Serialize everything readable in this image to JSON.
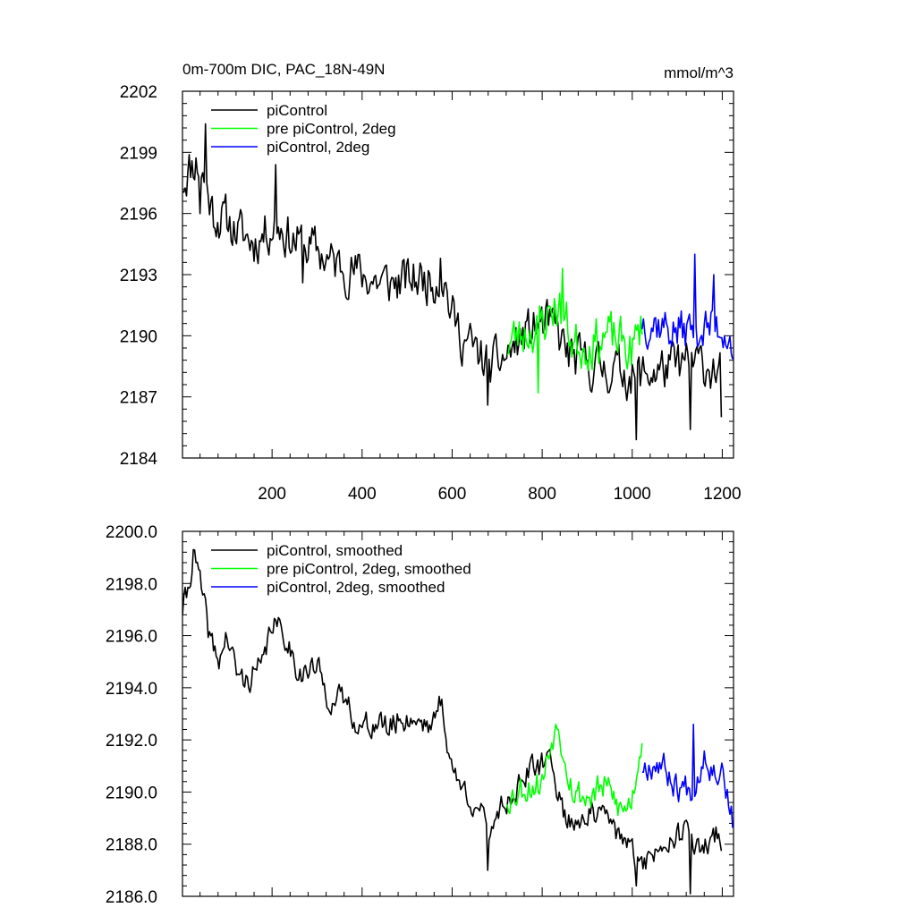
{
  "figure": {
    "title_left": "0m-700m DIC, PAC_18N-49N",
    "title_right": "mmol/m^3"
  },
  "chart_data": [
    {
      "type": "line",
      "name": "raw",
      "xlim": [
        1,
        1225
      ],
      "ylim": [
        2184,
        2202
      ],
      "xticks": [
        200,
        400,
        600,
        800,
        1000,
        1200
      ],
      "xtick_labels": [
        "200",
        "400",
        "600",
        "800",
        "1000",
        "1200"
      ],
      "yticks": [
        2184,
        2187,
        2190,
        2193,
        2196,
        2199,
        2202
      ],
      "ytick_labels": [
        "2184",
        "2187",
        "2190",
        "2193",
        "2196",
        "2199",
        "2202"
      ],
      "legend_position": "top-left",
      "series": [
        {
          "name": "piControl",
          "color": "#000000",
          "x_range": [
            1,
            1200
          ],
          "anchors": [
            [
              1,
              2197.6
            ],
            [
              15,
              2198.2
            ],
            [
              30,
              2198.6
            ],
            [
              50,
              2197.6
            ],
            [
              70,
              2196.0
            ],
            [
              100,
              2195.6
            ],
            [
              130,
              2195.0
            ],
            [
              160,
              2194.6
            ],
            [
              190,
              2195.2
            ],
            [
              210,
              2195.6
            ],
            [
              240,
              2194.8
            ],
            [
              270,
              2194.4
            ],
            [
              300,
              2194.2
            ],
            [
              330,
              2193.6
            ],
            [
              360,
              2193.4
            ],
            [
              400,
              2193.0
            ],
            [
              440,
              2192.6
            ],
            [
              480,
              2192.6
            ],
            [
              520,
              2192.8
            ],
            [
              560,
              2192.8
            ],
            [
              580,
              2193.0
            ],
            [
              600,
              2191.0
            ],
            [
              620,
              2190.0
            ],
            [
              660,
              2189.0
            ],
            [
              690,
              2188.5
            ],
            [
              720,
              2189.0
            ],
            [
              760,
              2190.0
            ],
            [
              800,
              2190.6
            ],
            [
              830,
              2190.3
            ],
            [
              860,
              2189.0
            ],
            [
              900,
              2188.6
            ],
            [
              940,
              2188.4
            ],
            [
              980,
              2188.3
            ],
            [
              1000,
              2188.0
            ],
            [
              1040,
              2188.2
            ],
            [
              1080,
              2188.4
            ],
            [
              1120,
              2188.6
            ],
            [
              1160,
              2188.6
            ],
            [
              1200,
              2188.2
            ]
          ],
          "noise": 1.0,
          "seed": 11
        },
        {
          "name": "pre piControl, 2deg",
          "color": "#00ff00",
          "x_range": [
            722,
            1022
          ],
          "anchors": [
            [
              722,
              2189.6
            ],
            [
              760,
              2190.2
            ],
            [
              800,
              2190.6
            ],
            [
              830,
              2191.6
            ],
            [
              850,
              2190.8
            ],
            [
              870,
              2189.6
            ],
            [
              900,
              2189.6
            ],
            [
              940,
              2190.0
            ],
            [
              980,
              2189.6
            ],
            [
              1000,
              2189.2
            ],
            [
              1022,
              2190.6
            ]
          ],
          "noise": 1.05,
          "seed": 23
        },
        {
          "name": "piControl, 2deg",
          "color": "#0000ff",
          "x_range": [
            1022,
            1225
          ],
          "anchors": [
            [
              1022,
              2190.8
            ],
            [
              1060,
              2190.6
            ],
            [
              1100,
              2190.2
            ],
            [
              1140,
              2190.4
            ],
            [
              1180,
              2190.4
            ],
            [
              1210,
              2190.4
            ],
            [
              1225,
              2189.4
            ]
          ],
          "noise": 0.95,
          "seed": 37
        }
      ],
      "point_features": [
        {
          "series": 0,
          "x": 52,
          "y": 2200.4
        },
        {
          "series": 0,
          "x": 40,
          "y": 2196.0
        },
        {
          "series": 0,
          "x": 208,
          "y": 2198.4
        },
        {
          "series": 0,
          "x": 268,
          "y": 2192.6
        },
        {
          "series": 0,
          "x": 575,
          "y": 2193.8
        },
        {
          "series": 0,
          "x": 678,
          "y": 2186.6
        },
        {
          "series": 0,
          "x": 1010,
          "y": 2184.9
        },
        {
          "series": 0,
          "x": 1130,
          "y": 2185.4
        },
        {
          "series": 0,
          "x": 1200,
          "y": 2186.0
        },
        {
          "series": 1,
          "x": 790,
          "y": 2187.2
        },
        {
          "series": 1,
          "x": 845,
          "y": 2193.3
        },
        {
          "series": 2,
          "x": 1140,
          "y": 2194.0
        },
        {
          "series": 2,
          "x": 1180,
          "y": 2193.0
        }
      ]
    },
    {
      "type": "line",
      "name": "smoothed",
      "xlim": [
        1,
        1225
      ],
      "ylim": [
        2186,
        2200
      ],
      "xticks": [
        200,
        400,
        600,
        800,
        1000,
        1200
      ],
      "xtick_labels": [],
      "yticks": [
        2186,
        2188,
        2190,
        2192,
        2194,
        2196,
        2198,
        2200
      ],
      "ytick_labels": [
        "2186.0",
        "2188.0",
        "2190.0",
        "2192.0",
        "2194.0",
        "2196.0",
        "2198.0",
        "2200.0"
      ],
      "legend_position": "top-left",
      "series": [
        {
          "name": "piControl, smoothed",
          "color": "#000000",
          "x_range": [
            1,
            1200
          ],
          "anchors": [
            [
              1,
              2197.0
            ],
            [
              15,
              2197.8
            ],
            [
              25,
              2199.3
            ],
            [
              40,
              2198.0
            ],
            [
              60,
              2196.0
            ],
            [
              80,
              2195.0
            ],
            [
              100,
              2196.0
            ],
            [
              120,
              2194.6
            ],
            [
              140,
              2194.2
            ],
            [
              160,
              2194.6
            ],
            [
              180,
              2194.8
            ],
            [
              200,
              2196.6
            ],
            [
              215,
              2196.2
            ],
            [
              230,
              2196.0
            ],
            [
              260,
              2194.6
            ],
            [
              280,
              2194.6
            ],
            [
              300,
              2194.8
            ],
            [
              320,
              2193.8
            ],
            [
              340,
              2193.4
            ],
            [
              360,
              2193.6
            ],
            [
              380,
              2193.0
            ],
            [
              400,
              2192.4
            ],
            [
              420,
              2192.6
            ],
            [
              440,
              2192.6
            ],
            [
              460,
              2192.4
            ],
            [
              480,
              2192.8
            ],
            [
              500,
              2192.8
            ],
            [
              520,
              2192.8
            ],
            [
              560,
              2192.6
            ],
            [
              575,
              2193.6
            ],
            [
              600,
              2190.8
            ],
            [
              620,
              2190.2
            ],
            [
              660,
              2189.4
            ],
            [
              680,
              2188.2
            ],
            [
              700,
              2189.4
            ],
            [
              720,
              2189.6
            ],
            [
              760,
              2190.6
            ],
            [
              800,
              2191.0
            ],
            [
              820,
              2191.4
            ],
            [
              840,
              2189.6
            ],
            [
              860,
              2188.8
            ],
            [
              900,
              2189.2
            ],
            [
              940,
              2189.0
            ],
            [
              980,
              2188.2
            ],
            [
              1000,
              2187.6
            ],
            [
              1040,
              2187.4
            ],
            [
              1080,
              2188.4
            ],
            [
              1120,
              2188.4
            ],
            [
              1150,
              2187.6
            ],
            [
              1180,
              2188.4
            ],
            [
              1200,
              2188.2
            ]
          ],
          "noise": 0.45,
          "seed": 41
        },
        {
          "name": "pre piControl, 2deg, smoothed",
          "color": "#00ff00",
          "x_range": [
            722,
            1022
          ],
          "anchors": [
            [
              722,
              2189.8
            ],
            [
              760,
              2190.2
            ],
            [
              800,
              2190.4
            ],
            [
              830,
              2192.6
            ],
            [
              850,
              2191.6
            ],
            [
              870,
              2190.0
            ],
            [
              900,
              2189.8
            ],
            [
              940,
              2190.2
            ],
            [
              980,
              2189.2
            ],
            [
              1000,
              2189.8
            ],
            [
              1022,
              2192.2
            ]
          ],
          "noise": 0.55,
          "seed": 53
        },
        {
          "name": "piControl, 2deg, smoothed",
          "color": "#0000ff",
          "x_range": [
            1022,
            1225
          ],
          "anchors": [
            [
              1022,
              2191.0
            ],
            [
              1060,
              2191.2
            ],
            [
              1100,
              2190.2
            ],
            [
              1140,
              2190.2
            ],
            [
              1160,
              2191.6
            ],
            [
              1180,
              2190.8
            ],
            [
              1200,
              2191.0
            ],
            [
              1225,
              2188.6
            ]
          ],
          "noise": 0.5,
          "seed": 67
        }
      ],
      "point_features": [
        {
          "series": 0,
          "x": 25,
          "y": 2199.3
        },
        {
          "series": 0,
          "x": 678,
          "y": 2187.0
        },
        {
          "series": 0,
          "x": 1010,
          "y": 2186.4
        },
        {
          "series": 0,
          "x": 1130,
          "y": 2186.1
        },
        {
          "series": 1,
          "x": 830,
          "y": 2192.6
        },
        {
          "series": 2,
          "x": 1135,
          "y": 2192.6
        }
      ]
    }
  ]
}
